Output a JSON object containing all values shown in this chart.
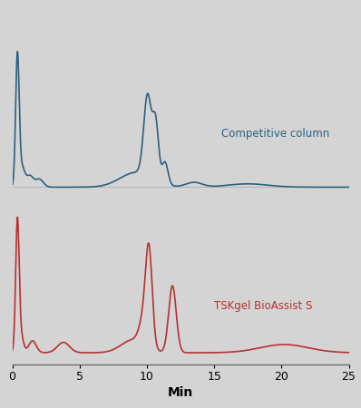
{
  "background_color": "#d4d4d4",
  "plot_bg_color": "#d4d4d4",
  "blue_color": "#2d6080",
  "red_color": "#b83030",
  "xlabel": "Min",
  "xlabel_fontsize": 10,
  "tick_fontsize": 9,
  "label_blue": "Competitive column",
  "label_red": "TSKgel BioAssist S",
  "xmin": 0,
  "xmax": 25,
  "xticks": [
    0,
    5,
    10,
    15,
    20,
    25
  ],
  "linewidth": 1.2
}
